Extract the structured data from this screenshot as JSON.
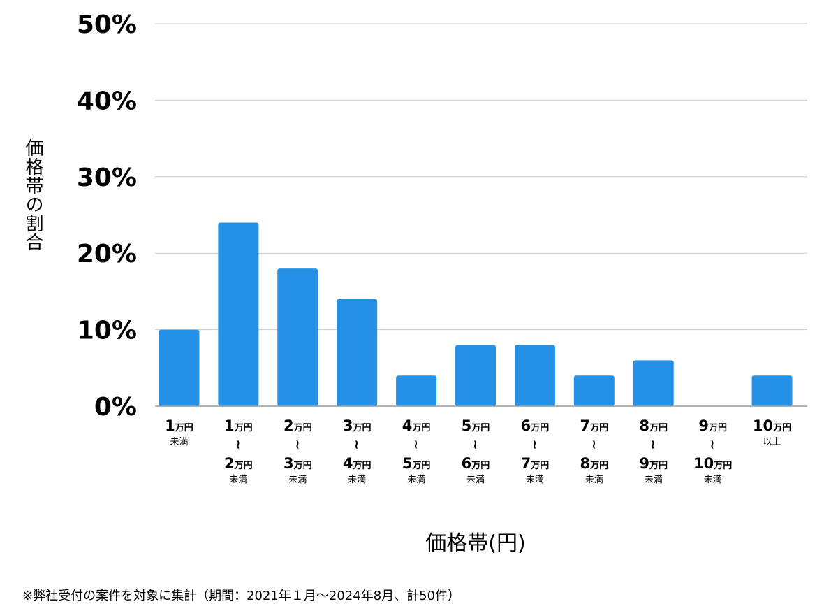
{
  "chart_data": {
    "type": "bar",
    "title": "",
    "ylabel": "価格帯の割合",
    "xlabel": "価格帯(円)",
    "ylim": [
      0,
      50
    ],
    "yticks": [
      "0%",
      "10%",
      "20%",
      "30%",
      "40%",
      "50%"
    ],
    "grid": true,
    "color": "#2490e6",
    "categories": [
      {
        "top": "1",
        "top_unit": "万円",
        "bottom": "",
        "bottom_unit": "",
        "note": "未満",
        "tilde": false
      },
      {
        "top": "1",
        "top_unit": "万円",
        "bottom": "2",
        "bottom_unit": "万円",
        "note": "未満",
        "tilde": true
      },
      {
        "top": "2",
        "top_unit": "万円",
        "bottom": "3",
        "bottom_unit": "万円",
        "note": "未満",
        "tilde": true
      },
      {
        "top": "3",
        "top_unit": "万円",
        "bottom": "4",
        "bottom_unit": "万円",
        "note": "未満",
        "tilde": true
      },
      {
        "top": "4",
        "top_unit": "万円",
        "bottom": "5",
        "bottom_unit": "万円",
        "note": "未満",
        "tilde": true
      },
      {
        "top": "5",
        "top_unit": "万円",
        "bottom": "6",
        "bottom_unit": "万円",
        "note": "未満",
        "tilde": true
      },
      {
        "top": "6",
        "top_unit": "万円",
        "bottom": "7",
        "bottom_unit": "万円",
        "note": "未満",
        "tilde": true
      },
      {
        "top": "7",
        "top_unit": "万円",
        "bottom": "8",
        "bottom_unit": "万円",
        "note": "未満",
        "tilde": true
      },
      {
        "top": "8",
        "top_unit": "万円",
        "bottom": "9",
        "bottom_unit": "万円",
        "note": "未満",
        "tilde": true
      },
      {
        "top": "9",
        "top_unit": "万円",
        "bottom": "10",
        "bottom_unit": "万円",
        "note": "未満",
        "tilde": true
      },
      {
        "top": "10",
        "top_unit": "万円",
        "bottom": "",
        "bottom_unit": "",
        "note": "以上",
        "tilde": false
      }
    ],
    "values": [
      10,
      24,
      18,
      14,
      4,
      8,
      8,
      4,
      6,
      0,
      4
    ]
  },
  "footnote": "※弊社受付の案件を対象に集計（期間：2021年１月〜2024年8月、計50件）"
}
